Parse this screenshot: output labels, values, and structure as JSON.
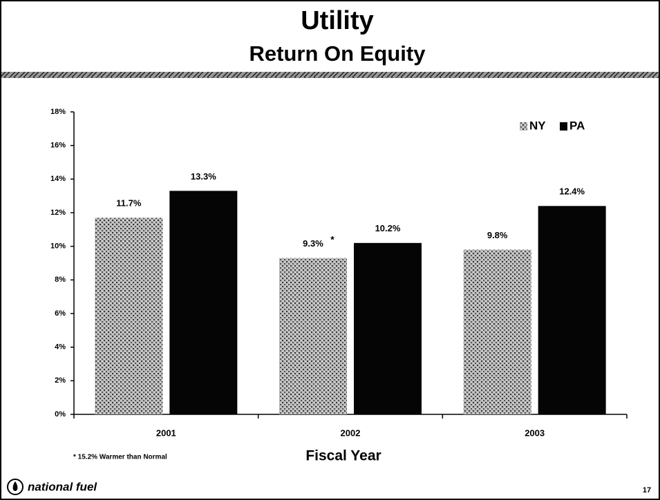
{
  "chart_data": {
    "type": "bar",
    "title": "Utility",
    "subtitle": "Return On Equity",
    "categories": [
      "2001",
      "2002",
      "2003"
    ],
    "series": [
      {
        "name": "NY",
        "color": "#9a9a9a",
        "values": [
          11.7,
          9.3,
          9.8
        ],
        "value_labels": [
          "11.7%",
          "9.3%",
          "9.8%"
        ]
      },
      {
        "name": "PA",
        "color": "#050505",
        "values": [
          13.3,
          10.2,
          12.4
        ],
        "value_labels": [
          "13.3%",
          "10.2%",
          "12.4%"
        ]
      }
    ],
    "ylim": [
      0,
      18
    ],
    "yticks": [
      {
        "value": 0,
        "label": "0%"
      },
      {
        "value": 2,
        "label": "2%"
      },
      {
        "value": 4,
        "label": "4%"
      },
      {
        "value": 6,
        "label": "6%"
      },
      {
        "value": 8,
        "label": "8%"
      },
      {
        "value": 10,
        "label": "10%"
      },
      {
        "value": 12,
        "label": "12%"
      },
      {
        "value": 14,
        "label": "14%"
      },
      {
        "value": 16,
        "label": "16%"
      },
      {
        "value": 18,
        "label": "18%"
      }
    ],
    "xlabel": "Fiscal Year",
    "note_marker": "*",
    "footnote": "* 15.2% Warmer than Normal",
    "legend": "top-right"
  },
  "footer": {
    "logo": "national fuel",
    "page_number": "17"
  }
}
